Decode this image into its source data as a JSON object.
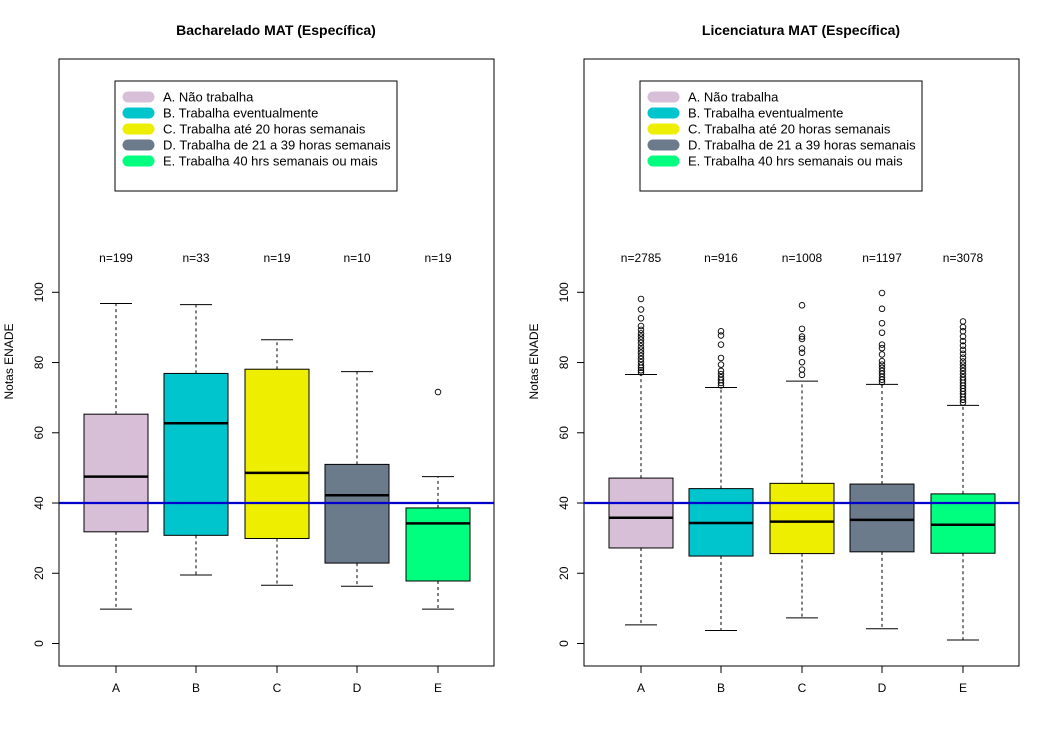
{
  "chart_data": [
    {
      "type": "boxplot",
      "title": "Bacharelado MAT (Específica)",
      "ylabel": "Notas ENADE",
      "xlabel": "",
      "ylim": [
        -6,
        166
      ],
      "yticks": [
        0,
        20,
        40,
        60,
        80,
        100
      ],
      "reference_line": 40,
      "reference_color": "#0000cd",
      "categories": [
        "A",
        "B",
        "C",
        "D",
        "E"
      ],
      "counts": [
        "n=199",
        "n=33",
        "n=19",
        "n=10",
        "n=19"
      ],
      "colors": [
        "#d8bfd8",
        "#00c5cd",
        "#eeee00",
        "#6c7b8b",
        "#00ff7f"
      ],
      "legend": [
        "A. Não trabalha",
        "B. Trabalha eventualmente",
        "C. Trabalha até 20 horas semanais",
        "D. Trabalha de 21 a 39 horas semanais",
        "E. Trabalha 40 hrs semanais ou mais"
      ],
      "boxes": [
        {
          "min": 9.8,
          "q1": 31.8,
          "median": 47.5,
          "q3": 65.3,
          "max": 96.8,
          "outliers": []
        },
        {
          "min": 19.5,
          "q1": 30.8,
          "median": 62.7,
          "q3": 76.9,
          "max": 96.5,
          "outliers": []
        },
        {
          "min": 16.6,
          "q1": 29.9,
          "median": 48.6,
          "q3": 78.1,
          "max": 86.5,
          "outliers": []
        },
        {
          "min": 16.3,
          "q1": 22.9,
          "median": 42.2,
          "q3": 51.0,
          "max": 77.4,
          "outliers": []
        },
        {
          "min": 9.8,
          "q1": 17.8,
          "median": 34.2,
          "q3": 38.6,
          "max": 47.5,
          "outliers": [
            71.6
          ]
        }
      ]
    },
    {
      "type": "boxplot",
      "title": "Licenciatura MAT (Específica)",
      "ylabel": "Notas ENADE",
      "xlabel": "",
      "ylim": [
        -6,
        166
      ],
      "yticks": [
        0,
        20,
        40,
        60,
        80,
        100
      ],
      "reference_line": 40,
      "reference_color": "#0000cd",
      "categories": [
        "A",
        "B",
        "C",
        "D",
        "E"
      ],
      "counts": [
        "n=2785",
        "n=916",
        "n=1008",
        "n=1197",
        "n=3078"
      ],
      "colors": [
        "#d8bfd8",
        "#00c5cd",
        "#eeee00",
        "#6c7b8b",
        "#00ff7f"
      ],
      "legend": [
        "A. Não trabalha",
        "B. Trabalha eventualmente",
        "C. Trabalha até 20 horas semanais",
        "D. Trabalha de 21 a 39 horas semanais",
        "E. Trabalha 40 hrs semanais ou mais"
      ],
      "boxes": [
        {
          "min": 5.3,
          "q1": 27.2,
          "median": 35.8,
          "q3": 47.1,
          "max": 76.6,
          "outliers": [
            77.2,
            77.8,
            78.5,
            79.2,
            80.1,
            81.0,
            81.9,
            82.8,
            83.7,
            84.6,
            85.6,
            86.5,
            87.4,
            88.3,
            89.3,
            90.4,
            92.6,
            95.1,
            98.1
          ]
        },
        {
          "min": 3.7,
          "q1": 24.9,
          "median": 34.3,
          "q3": 44.1,
          "max": 72.9,
          "outliers": [
            73.5,
            74.2,
            75.0,
            75.8,
            76.7,
            77.6,
            79.4,
            81.3,
            85.1,
            87.7,
            88.9
          ]
        },
        {
          "min": 7.3,
          "q1": 25.6,
          "median": 34.7,
          "q3": 45.6,
          "max": 74.7,
          "outliers": [
            76.5,
            78.0,
            80.1,
            82.8,
            84.0,
            86.7,
            87.4,
            89.6,
            96.3
          ]
        },
        {
          "min": 4.2,
          "q1": 26.1,
          "median": 35.2,
          "q3": 45.4,
          "max": 73.8,
          "outliers": [
            74.4,
            75.1,
            75.9,
            76.8,
            77.6,
            78.5,
            79.4,
            80.4,
            82.3,
            84.1,
            85.1,
            88.5,
            91.2,
            95.3,
            99.8
          ]
        },
        {
          "min": 1.0,
          "q1": 25.7,
          "median": 33.8,
          "q3": 42.6,
          "max": 67.8,
          "outliers": [
            68.6,
            69.4,
            70.2,
            71.0,
            71.8,
            72.6,
            73.4,
            74.2,
            75.0,
            75.8,
            76.7,
            77.6,
            78.5,
            79.4,
            80.3,
            81.4,
            82.5,
            83.6,
            84.8,
            86.1,
            87.4,
            88.9,
            90.1,
            91.7
          ]
        }
      ]
    }
  ]
}
